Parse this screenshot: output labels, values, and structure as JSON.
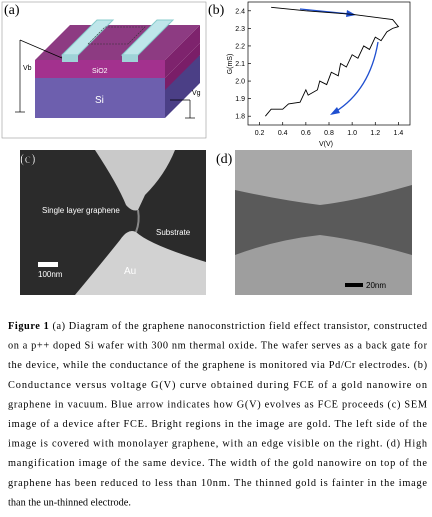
{
  "panels": {
    "a": {
      "label": "(a)",
      "layer_top": "SiO2",
      "layer_bottom": "Si",
      "back_gate": "Vb",
      "gate": "Vg"
    },
    "b": {
      "label": "(b)"
    },
    "c": {
      "label": "(c)",
      "graphene": "Single layer graphene",
      "substrate": "Substrate",
      "scale": "100nm",
      "electrode": "Au"
    },
    "d": {
      "label": "(d)",
      "scale": "20nm"
    }
  },
  "chart_data": {
    "type": "line",
    "x_label": "V(V)",
    "y_label": "G(mS)",
    "series": [
      {
        "color": "#000000",
        "x": [
          0.25,
          0.3,
          0.4,
          0.45,
          0.55,
          0.6,
          0.62,
          0.7,
          0.72,
          0.78,
          0.82,
          0.88,
          0.9,
          0.95,
          1.0,
          1.05,
          1.1,
          1.15,
          1.2,
          1.25,
          1.3,
          1.35,
          1.4,
          1.35,
          1.0,
          0.6,
          0.3
        ],
        "values": [
          1.8,
          1.84,
          1.84,
          1.87,
          1.88,
          1.95,
          1.92,
          1.95,
          2.0,
          1.98,
          2.05,
          2.03,
          2.1,
          2.08,
          2.15,
          2.13,
          2.2,
          2.18,
          2.25,
          2.23,
          2.28,
          2.3,
          2.31,
          2.35,
          2.38,
          2.4,
          2.42
        ]
      }
    ],
    "xlim": [
      0.1,
      1.5
    ],
    "ylim": [
      1.75,
      2.45
    ],
    "xticks": [
      0.2,
      0.4,
      0.6,
      0.8,
      {
        "value": 1,
        "label": "1.0"
      },
      1.2,
      1.4
    ],
    "yticks": [
      1.8,
      1.9,
      {
        "value": 2,
        "label": "2.0"
      },
      2.1,
      2.2,
      2.3,
      2.4
    ]
  },
  "caption": {
    "label": "Figure 1",
    "lines": [
      "(a) Diagram of the graphene nanoconstriction field effect transistor, constructed",
      "on a p++ doped Si wafer with 300 nm thermal oxide.  The wafer serves as a back gate for",
      "the device, while the conductance of the graphene is monitored via Pd/Cr electrodes. (b)",
      "Conductance versus voltage G(V) curve obtained during FCE of a gold nanowire on",
      "graphene in vacuum. Blue arrow indicates how G(V) evolves as FCE proceeds  (c) SEM",
      "image of a device after FCE.  Bright regions in the image are gold. The left side of the",
      "image is covered with monolayer graphene, with an edge visible on the right. (d) High",
      "mangification image of the same device. The width of the gold nanowire on top of the",
      "graphene has been reduced to less than 10nm.  The thinned gold is fainter in the image",
      "than the un-thinned electrode."
    ]
  }
}
